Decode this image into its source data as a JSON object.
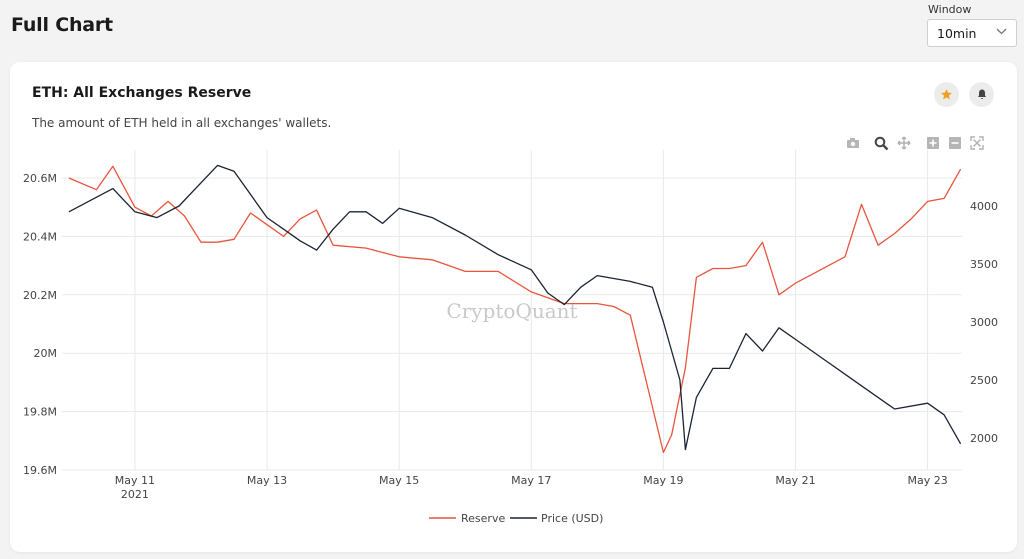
{
  "page": {
    "title": "Full Chart"
  },
  "window": {
    "label": "Window",
    "value": "10min"
  },
  "card": {
    "title": "ETH: All Exchanges Reserve",
    "description": "The amount of ETH held in all exchanges' wallets."
  },
  "icons": [
    "star-icon",
    "bell-icon",
    "camera-icon",
    "zoom-icon",
    "pan-icon",
    "zoom-in-icon",
    "zoom-out-icon",
    "autoscale-icon"
  ],
  "colors": {
    "reserve": "#e8553e",
    "price": "#1c2333",
    "star": "#f0a020",
    "grid": "#e9e9e9"
  },
  "watermark": "CryptoQuant",
  "chart_data": {
    "type": "line",
    "year_label": "2021",
    "x_ticks": [
      "May 11",
      "May 13",
      "May 15",
      "May 17",
      "May 19",
      "May 21",
      "May 23"
    ],
    "y_left": {
      "ticks": [
        "19.6M",
        "19.8M",
        "20M",
        "20.2M",
        "20.4M",
        "20.6M"
      ],
      "values": [
        19.6,
        19.8,
        20.0,
        20.2,
        20.4,
        20.6
      ],
      "unit": "M",
      "ylim": [
        19.6,
        20.6
      ]
    },
    "y_right": {
      "ticks": [
        "2000",
        "2500",
        "3000",
        "3500",
        "4000"
      ],
      "values": [
        2000,
        2500,
        3000,
        3500,
        4000
      ],
      "ylim": [
        2000,
        4000
      ]
    },
    "legend": [
      "Reserve",
      "Price (USD)"
    ],
    "series": [
      {
        "name": "Reserve",
        "axis": "left",
        "x": [
          "2021-05-10 00:00",
          "2021-05-10 10:00",
          "2021-05-10 16:00",
          "2021-05-11 00:00",
          "2021-05-11 06:00",
          "2021-05-11 12:00",
          "2021-05-11 18:00",
          "2021-05-12 00:00",
          "2021-05-12 06:00",
          "2021-05-12 12:00",
          "2021-05-12 18:00",
          "2021-05-13 00:00",
          "2021-05-13 06:00",
          "2021-05-13 12:00",
          "2021-05-13 18:00",
          "2021-05-14 00:00",
          "2021-05-14 12:00",
          "2021-05-15 00:00",
          "2021-05-15 12:00",
          "2021-05-16 00:00",
          "2021-05-16 12:00",
          "2021-05-17 00:00",
          "2021-05-17 12:00",
          "2021-05-18 00:00",
          "2021-05-18 06:00",
          "2021-05-18 12:00",
          "2021-05-19 00:00",
          "2021-05-19 03:00",
          "2021-05-19 08:00",
          "2021-05-19 12:00",
          "2021-05-19 18:00",
          "2021-05-20 00:00",
          "2021-05-20 06:00",
          "2021-05-20 12:00",
          "2021-05-20 18:00",
          "2021-05-21 00:00",
          "2021-05-21 06:00",
          "2021-05-21 12:00",
          "2021-05-21 18:00",
          "2021-05-22 00:00",
          "2021-05-22 06:00",
          "2021-05-22 12:00",
          "2021-05-22 18:00",
          "2021-05-23 00:00",
          "2021-05-23 06:00",
          "2021-05-23 12:00"
        ],
        "y": [
          20.6,
          20.56,
          20.64,
          20.5,
          20.47,
          20.52,
          20.47,
          20.38,
          20.38,
          20.39,
          20.48,
          20.44,
          20.4,
          20.46,
          20.49,
          20.37,
          20.36,
          20.33,
          20.32,
          20.28,
          20.28,
          20.21,
          20.17,
          20.17,
          20.16,
          20.13,
          19.66,
          19.72,
          19.95,
          20.26,
          20.29,
          20.29,
          20.3,
          20.38,
          20.2,
          20.24,
          20.27,
          20.3,
          20.33,
          20.51,
          20.37,
          20.41,
          20.46,
          20.52,
          20.53,
          20.63
        ]
      },
      {
        "name": "Price (USD)",
        "axis": "right",
        "x": [
          "2021-05-10 00:00",
          "2021-05-10 08:00",
          "2021-05-10 16:00",
          "2021-05-11 00:00",
          "2021-05-11 08:00",
          "2021-05-11 16:00",
          "2021-05-12 00:00",
          "2021-05-12 06:00",
          "2021-05-12 12:00",
          "2021-05-12 18:00",
          "2021-05-13 00:00",
          "2021-05-13 06:00",
          "2021-05-13 12:00",
          "2021-05-13 18:00",
          "2021-05-14 00:00",
          "2021-05-14 06:00",
          "2021-05-14 12:00",
          "2021-05-14 18:00",
          "2021-05-15 00:00",
          "2021-05-15 12:00",
          "2021-05-16 00:00",
          "2021-05-16 12:00",
          "2021-05-17 00:00",
          "2021-05-17 06:00",
          "2021-05-17 12:00",
          "2021-05-17 18:00",
          "2021-05-18 00:00",
          "2021-05-18 12:00",
          "2021-05-18 20:00",
          "2021-05-19 00:00",
          "2021-05-19 06:00",
          "2021-05-19 08:00",
          "2021-05-19 12:00",
          "2021-05-19 18:00",
          "2021-05-20 00:00",
          "2021-05-20 06:00",
          "2021-05-20 12:00",
          "2021-05-20 18:00",
          "2021-05-21 00:00",
          "2021-05-21 06:00",
          "2021-05-21 12:00",
          "2021-05-21 18:00",
          "2021-05-22 00:00",
          "2021-05-22 12:00",
          "2021-05-23 00:00",
          "2021-05-23 06:00",
          "2021-05-23 12:00"
        ],
        "y": [
          3950,
          4050,
          4150,
          3950,
          3900,
          4000,
          4200,
          4350,
          4300,
          4100,
          3900,
          3800,
          3700,
          3620,
          3800,
          3950,
          3950,
          3850,
          3980,
          3900,
          3750,
          3580,
          3450,
          3250,
          3150,
          3300,
          3400,
          3350,
          3300,
          3000,
          2500,
          1900,
          2350,
          2600,
          2600,
          2900,
          2750,
          2950,
          2850,
          2750,
          2650,
          2550,
          2450,
          2250,
          2300,
          2200,
          1950
        ]
      }
    ]
  }
}
